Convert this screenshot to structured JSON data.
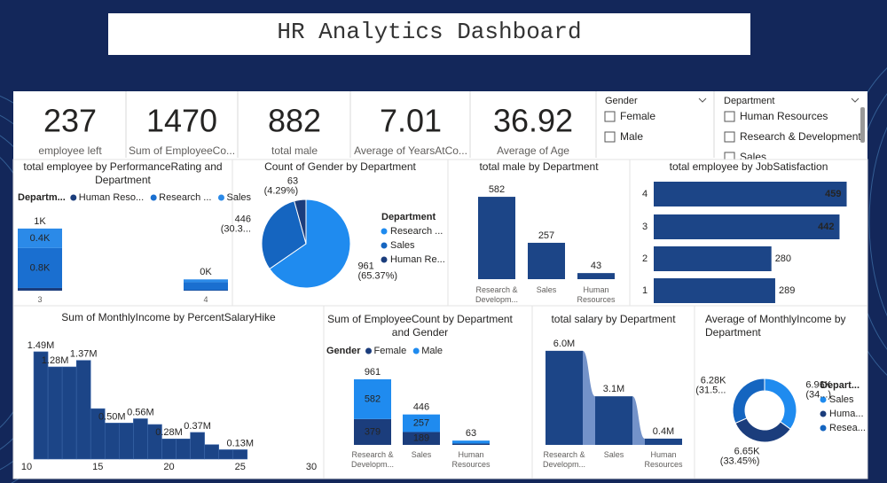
{
  "header": {
    "title": "HR Analytics Dashboard"
  },
  "kpis": [
    {
      "value": 237,
      "label": "employee left"
    },
    {
      "value": 1470,
      "label": "Sum of EmployeeCo..."
    },
    {
      "value": 882,
      "label": "total male"
    },
    {
      "value": 7.01,
      "label": "Average of YearsAtCo..."
    },
    {
      "value": 36.92,
      "label": "Average of Age"
    }
  ],
  "slicers": [
    {
      "title": "Gender",
      "options": [
        "Female",
        "Male"
      ]
    },
    {
      "title": "Department",
      "options": [
        "Human Resources",
        "Research & Development",
        "Sales"
      ]
    }
  ],
  "chart_data": [
    {
      "type": "stacked_bar",
      "title": "total employee by PerformanceRating and Department",
      "legend_title": "Departm...",
      "categories": [
        3,
        4
      ],
      "series": [
        {
          "name": "Human Reso...",
          "color": "#1b3d7c",
          "values": [
            54,
            9
          ],
          "value_labels": [
            null,
            null
          ]
        },
        {
          "name": "Research ...",
          "color": "#1a6fd0",
          "values": [
            800,
            161
          ],
          "value_labels": [
            "0.8K",
            null
          ]
        },
        {
          "name": "Sales",
          "color": "#2b8ae8",
          "values": [
            390,
            56
          ],
          "value_labels": [
            "0.4K",
            null
          ]
        }
      ],
      "totals": {
        "values": [
          1244,
          226
        ],
        "value_labels": [
          "1K",
          "0K"
        ]
      },
      "ylim": [
        0,
        1650
      ]
    },
    {
      "type": "pie",
      "title": "Count of Gender by Department",
      "legend_title": "Department",
      "categories": [
        "Research ...",
        "Sales",
        "Human Re..."
      ],
      "values": [
        961,
        446,
        63
      ],
      "percent_labels": [
        "(65.37%)",
        "(30.3...",
        "(4.29%)"
      ],
      "colors": [
        "#1f8bef",
        "#1565c0",
        "#1b3d7c"
      ]
    },
    {
      "type": "bar",
      "title": "total male by Department",
      "categories": [
        "Research & Developm...",
        "Sales",
        "Human Resources"
      ],
      "values": [
        582,
        257,
        43
      ],
      "color": "#1c4587",
      "ylim": [
        0,
        620
      ]
    },
    {
      "type": "hbar",
      "title": "total employee by JobSatisfaction",
      "categories": [
        4,
        3,
        2,
        1
      ],
      "values": [
        459,
        442,
        280,
        289
      ],
      "color": "#1c4587",
      "xlim": [
        0,
        460
      ]
    },
    {
      "type": "column",
      "title": "Sum of MonthlyIncome by PercentSalaryHike",
      "x": [
        11,
        12,
        13,
        14,
        15,
        16,
        17,
        18,
        19,
        20,
        21,
        22,
        23,
        24,
        25
      ],
      "values": [
        1490000,
        1280000,
        1280000,
        1370000,
        700000,
        500000,
        500000,
        560000,
        480000,
        280000,
        280000,
        370000,
        200000,
        130000,
        130000
      ],
      "value_labels": [
        "1.49M",
        "1.28M",
        null,
        "1.37M",
        null,
        "0.50M",
        null,
        "0.56M",
        null,
        "0.28M",
        null,
        "0.37M",
        null,
        null,
        "0.13M"
      ],
      "color": "#1c4587",
      "xlim": [
        10,
        30
      ],
      "xticks": [
        10,
        15,
        20,
        25,
        30
      ],
      "ylim": [
        0,
        1600000
      ]
    },
    {
      "type": "stacked_bar",
      "title": "Sum of EmployeeCount by Department and Gender",
      "legend_title": "Gender",
      "categories": [
        "Research & Developm...",
        "Sales",
        "Human Resources"
      ],
      "series": [
        {
          "name": "Female",
          "color": "#1b3d7c",
          "values": [
            379,
            189,
            20
          ],
          "value_labels": [
            "379",
            "189",
            null
          ]
        },
        {
          "name": "Male",
          "color": "#1f8bef",
          "values": [
            582,
            257,
            43
          ],
          "value_labels": [
            "582",
            "257",
            null
          ]
        }
      ],
      "totals": {
        "values": [
          961,
          446,
          63
        ]
      },
      "ylim": [
        0,
        1000
      ]
    },
    {
      "type": "ribbon",
      "title": "total salary by Department",
      "categories": [
        "Research & Developm...",
        "Sales",
        "Human Resources"
      ],
      "values": [
        6000000,
        3100000,
        400000
      ],
      "value_labels": [
        "6.0M",
        "3.1M",
        "0.4M"
      ],
      "color": "#1c4587",
      "ribbon_color": "#5b7fc0",
      "ylim": [
        0,
        6500000
      ]
    },
    {
      "type": "donut",
      "title": "Average of MonthlyIncome by Department",
      "legend_title": "Depart...",
      "categories": [
        "Sales",
        "Huma...",
        "Resea..."
      ],
      "values": [
        6960,
        6650,
        6280
      ],
      "value_labels": [
        "6.96K",
        "6.65K",
        "6.28K"
      ],
      "percent_labels": [
        "(34...)",
        "(33.45%)",
        "(31.5..."
      ],
      "colors": [
        "#1f8bef",
        "#1b3d7c",
        "#1565c0"
      ]
    }
  ]
}
